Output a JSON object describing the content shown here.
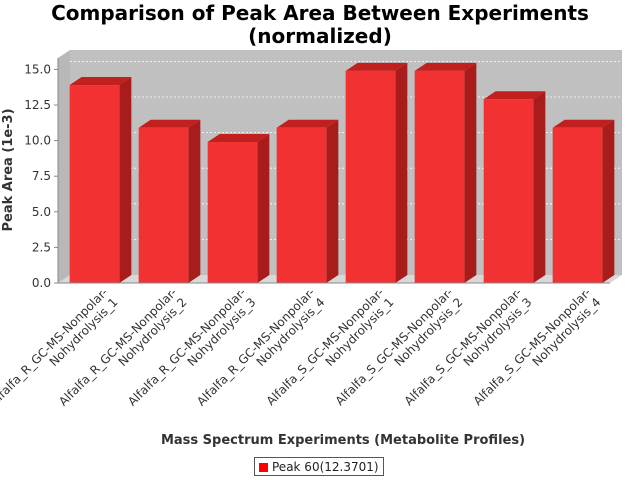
{
  "chart_data": {
    "type": "bar",
    "title": "Comparison of Peak Area Between Experiments (normalized)",
    "title_lines": [
      "Comparison of Peak Area Between Experiments",
      "(normalized)"
    ],
    "xlabel": "Mass Spectrum Experiments (Metabolite Profiles)",
    "ylabel": "Peak Area (1e-3)",
    "ylim": [
      0,
      15.8
    ],
    "yticks": [
      "0.0",
      "2.5",
      "5.0",
      "7.5",
      "10.0",
      "12.5",
      "15.0"
    ],
    "ytick_values": [
      0,
      2.5,
      5.0,
      7.5,
      10.0,
      12.5,
      15.0
    ],
    "categories": [
      [
        "Alfalfa_R_GC-MS-Nonpolar-",
        "Nohydrolysis_1"
      ],
      [
        "Alfalfa_R_GC-MS-Nonpolar-",
        "Nohydrolysis_2"
      ],
      [
        "Alfalfa_R_GC-MS-Nonpolar-",
        "Nohydrolysis_3"
      ],
      [
        "Alfalfa_R_GC-MS-Nonpolar-",
        "Nohydrolysis_4"
      ],
      [
        "Alfalfa_S_GC-MS-Nonpolar-",
        "Nohydrolysis_1"
      ],
      [
        "Alfalfa_S_GC-MS-Nonpolar-",
        "Nohydrolysis_2"
      ],
      [
        "Alfalfa_S_GC-MS-Nonpolar-",
        "Nohydrolysis_3"
      ],
      [
        "Alfalfa_S_GC-MS-Nonpolar-",
        "Nohydrolysis_4"
      ]
    ],
    "series": [
      {
        "name": "Peak 60(12.3701)",
        "values": [
          13.9,
          10.9,
          9.9,
          10.9,
          14.9,
          14.9,
          12.9,
          10.9
        ]
      }
    ],
    "grid": true,
    "legend": "bottom-center",
    "colors": {
      "bar_front": "#f23232",
      "bar_top": "#c21f1f",
      "bar_side": "#a81c1c",
      "plot_back": "#c0c0c0",
      "plot_floor": "#d8d8d8",
      "swatch": "#ff0000"
    }
  }
}
